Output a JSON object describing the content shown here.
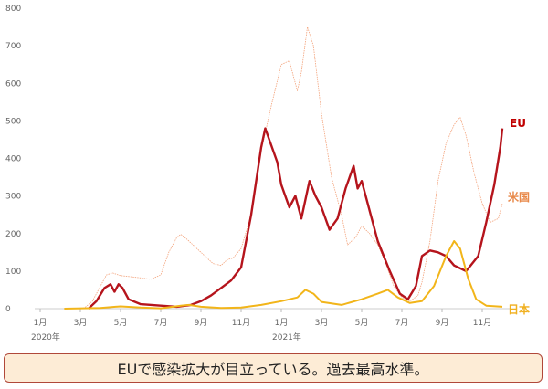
{
  "chart_data": {
    "type": "line",
    "title": "",
    "xlabel": "",
    "ylabel": "",
    "ylim": [
      0,
      800
    ],
    "yticks": [
      0,
      100,
      200,
      300,
      400,
      500,
      600,
      700,
      800
    ],
    "xticks": [
      {
        "label": "1月",
        "year": "2020年",
        "month_index": 0
      },
      {
        "label": "3月",
        "month_index": 2
      },
      {
        "label": "5月",
        "month_index": 4
      },
      {
        "label": "7月",
        "month_index": 6
      },
      {
        "label": "9月",
        "month_index": 8
      },
      {
        "label": "11月",
        "month_index": 10
      },
      {
        "label": "1月",
        "year": "2021年",
        "month_index": 12
      },
      {
        "label": "3月",
        "month_index": 14
      },
      {
        "label": "5月",
        "month_index": 16
      },
      {
        "label": "7月",
        "month_index": 18
      },
      {
        "label": "9月",
        "month_index": 20
      },
      {
        "label": "11月",
        "month_index": 22
      }
    ],
    "grid": false,
    "legend": "inline-right",
    "x_unit": "months since 2020-01",
    "series": [
      {
        "name": "米国",
        "color": "#f3a27a",
        "style": "thin-dotted",
        "points": [
          [
            1.8,
            0
          ],
          [
            2.2,
            2
          ],
          [
            2.6,
            20
          ],
          [
            3.0,
            60
          ],
          [
            3.3,
            90
          ],
          [
            3.6,
            95
          ],
          [
            4.0,
            88
          ],
          [
            4.5,
            85
          ],
          [
            5.0,
            82
          ],
          [
            5.5,
            78
          ],
          [
            6.0,
            90
          ],
          [
            6.4,
            150
          ],
          [
            6.8,
            190
          ],
          [
            7.0,
            198
          ],
          [
            7.3,
            185
          ],
          [
            7.8,
            160
          ],
          [
            8.2,
            140
          ],
          [
            8.6,
            120
          ],
          [
            9.0,
            115
          ],
          [
            9.3,
            130
          ],
          [
            9.6,
            135
          ],
          [
            10.0,
            160
          ],
          [
            10.5,
            250
          ],
          [
            11.0,
            420
          ],
          [
            11.5,
            540
          ],
          [
            12.0,
            650
          ],
          [
            12.4,
            660
          ],
          [
            12.8,
            580
          ],
          [
            13.0,
            630
          ],
          [
            13.3,
            750
          ],
          [
            13.6,
            700
          ],
          [
            14.0,
            520
          ],
          [
            14.5,
            350
          ],
          [
            15.0,
            250
          ],
          [
            15.3,
            170
          ],
          [
            15.7,
            190
          ],
          [
            16.0,
            220
          ],
          [
            16.4,
            200
          ],
          [
            16.8,
            170
          ],
          [
            17.2,
            120
          ],
          [
            17.6,
            60
          ],
          [
            18.0,
            30
          ],
          [
            18.4,
            20
          ],
          [
            18.8,
            35
          ],
          [
            19.0,
            70
          ],
          [
            19.4,
            180
          ],
          [
            19.8,
            340
          ],
          [
            20.2,
            440
          ],
          [
            20.6,
            490
          ],
          [
            20.9,
            510
          ],
          [
            21.2,
            460
          ],
          [
            21.6,
            360
          ],
          [
            22.0,
            280
          ],
          [
            22.4,
            230
          ],
          [
            22.8,
            240
          ],
          [
            23.0,
            280
          ]
        ]
      },
      {
        "name": "EU",
        "color": "#b5141c",
        "style": "thick",
        "points": [
          [
            2.4,
            0
          ],
          [
            2.8,
            20
          ],
          [
            3.2,
            55
          ],
          [
            3.5,
            65
          ],
          [
            3.7,
            45
          ],
          [
            3.9,
            65
          ],
          [
            4.1,
            55
          ],
          [
            4.4,
            25
          ],
          [
            5.0,
            12
          ],
          [
            6.0,
            8
          ],
          [
            6.8,
            5
          ],
          [
            7.5,
            10
          ],
          [
            8.0,
            20
          ],
          [
            8.5,
            35
          ],
          [
            9.0,
            55
          ],
          [
            9.5,
            75
          ],
          [
            10.0,
            110
          ],
          [
            10.5,
            250
          ],
          [
            11.0,
            430
          ],
          [
            11.2,
            480
          ],
          [
            11.4,
            450
          ],
          [
            11.8,
            390
          ],
          [
            12.0,
            330
          ],
          [
            12.4,
            270
          ],
          [
            12.7,
            300
          ],
          [
            13.0,
            240
          ],
          [
            13.4,
            340
          ],
          [
            13.7,
            300
          ],
          [
            14.0,
            270
          ],
          [
            14.4,
            210
          ],
          [
            14.8,
            240
          ],
          [
            15.2,
            320
          ],
          [
            15.6,
            380
          ],
          [
            15.8,
            320
          ],
          [
            16.0,
            340
          ],
          [
            16.3,
            280
          ],
          [
            16.8,
            180
          ],
          [
            17.4,
            100
          ],
          [
            17.9,
            40
          ],
          [
            18.3,
            25
          ],
          [
            18.7,
            60
          ],
          [
            19.0,
            140
          ],
          [
            19.4,
            155
          ],
          [
            19.8,
            150
          ],
          [
            20.2,
            140
          ],
          [
            20.6,
            115
          ],
          [
            21.2,
            100
          ],
          [
            21.8,
            140
          ],
          [
            22.2,
            230
          ],
          [
            22.6,
            330
          ],
          [
            22.9,
            430
          ],
          [
            23.0,
            480
          ]
        ]
      },
      {
        "name": "日本",
        "color": "#f2b51a",
        "style": "medium",
        "points": [
          [
            1.2,
            0
          ],
          [
            3.0,
            2
          ],
          [
            4.0,
            6
          ],
          [
            5.0,
            3
          ],
          [
            6.0,
            1
          ],
          [
            7.0,
            8
          ],
          [
            7.4,
            10
          ],
          [
            8.0,
            5
          ],
          [
            9.0,
            2
          ],
          [
            10.0,
            3
          ],
          [
            11.0,
            10
          ],
          [
            12.0,
            20
          ],
          [
            12.8,
            30
          ],
          [
            13.2,
            50
          ],
          [
            13.6,
            40
          ],
          [
            14.0,
            18
          ],
          [
            15.0,
            10
          ],
          [
            16.0,
            25
          ],
          [
            16.8,
            40
          ],
          [
            17.3,
            50
          ],
          [
            17.8,
            30
          ],
          [
            18.4,
            15
          ],
          [
            19.0,
            20
          ],
          [
            19.6,
            60
          ],
          [
            20.2,
            140
          ],
          [
            20.6,
            180
          ],
          [
            20.9,
            160
          ],
          [
            21.3,
            80
          ],
          [
            21.7,
            25
          ],
          [
            22.2,
            8
          ],
          [
            23.0,
            5
          ]
        ]
      }
    ],
    "annotations": [
      {
        "text": "EU",
        "color": "#c00000"
      },
      {
        "text": "米国",
        "color": "#e8894a"
      },
      {
        "text": "日本",
        "color": "#f0b020"
      }
    ]
  },
  "caption": "EUで感染拡大が目立っている。過去最高水準。"
}
